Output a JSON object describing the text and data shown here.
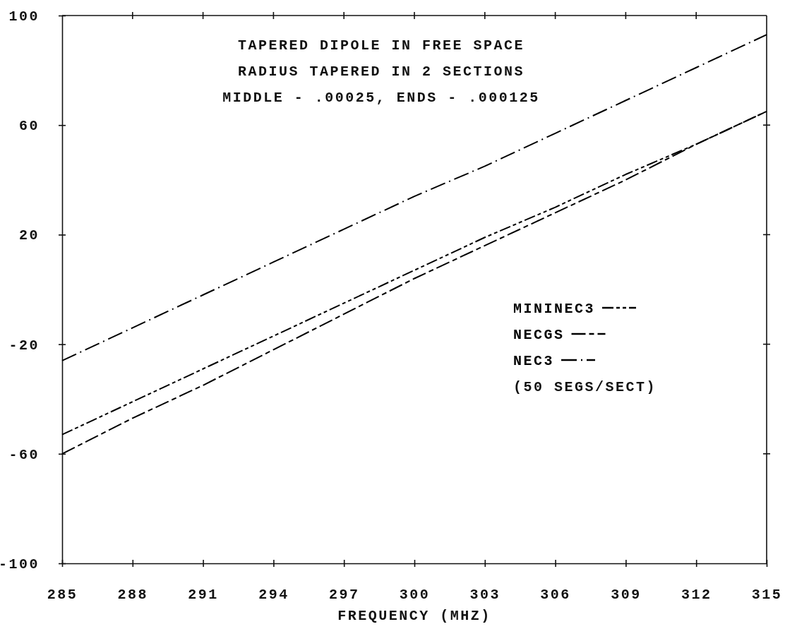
{
  "chart_data": {
    "type": "line",
    "title": "TAPERED DIPOLE IN FREE SPACE",
    "subtitle": "RADIUS TAPERED IN 2 SECTIONS",
    "annotations": [
      "MIDDLE - .00025, ENDS - .000125",
      "(50 SEGS/SECT)"
    ],
    "xlabel": "FREQUENCY (MHZ)",
    "x": [
      285,
      288,
      291,
      294,
      297,
      300,
      303,
      306,
      309,
      312,
      315
    ],
    "series": [
      {
        "name": "MININEC3",
        "color": "#000000",
        "line_style": "dashdotdot",
        "values": [
          -53,
          -41,
          -29,
          -17,
          -5,
          7,
          19,
          30,
          42,
          53,
          65
        ]
      },
      {
        "name": "NECGS",
        "color": "#000000",
        "line_style": "dashed",
        "values": [
          -60,
          -47,
          -35,
          -22,
          -9,
          4,
          16,
          28,
          40,
          53,
          65
        ]
      },
      {
        "name": "NEC3",
        "color": "#000000",
        "line_style": "dashdot",
        "values": [
          -26,
          -14,
          -2,
          10,
          22,
          34,
          45,
          57,
          69,
          81,
          93
        ]
      }
    ],
    "xlim": [
      285,
      315
    ],
    "xticks": [
      285,
      288,
      291,
      294,
      297,
      300,
      303,
      306,
      309,
      312,
      315
    ],
    "ylim": [
      -100,
      100
    ],
    "yticks": [
      -100,
      -60,
      -20,
      20,
      60,
      100
    ],
    "legend": "right",
    "grid": false,
    "marker": "none"
  }
}
